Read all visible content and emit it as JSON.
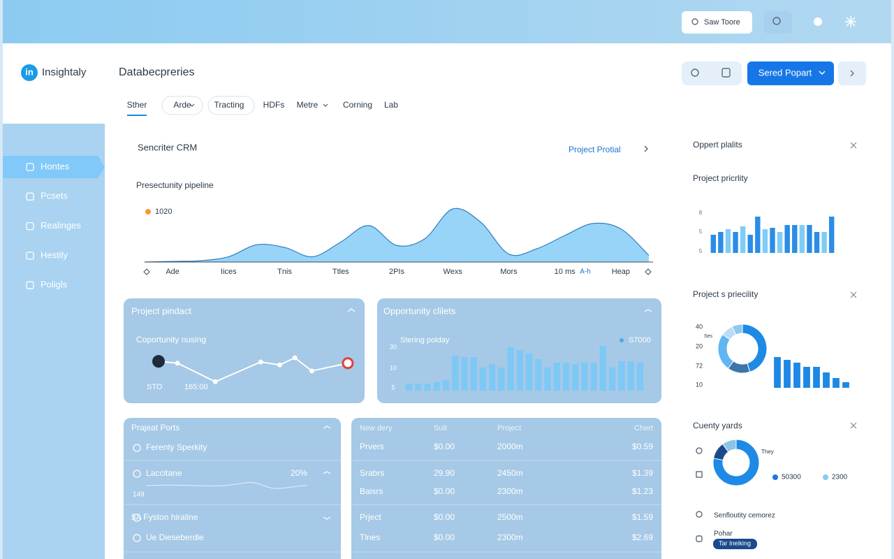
{
  "topbar": {
    "search_placeholder": "Saw Toore"
  },
  "brand": {
    "logo": "in",
    "name": "Insightaly"
  },
  "header": {
    "title": "Databecpreries",
    "button": "Sered Popart"
  },
  "tabs": [
    "Sther",
    "Arde",
    "Tracting",
    "HDFs",
    "Metre",
    "Corning",
    "Lab"
  ],
  "sidebar": [
    "Hontes",
    "Pcsets",
    "Realinges",
    "Hestily",
    "Poligls"
  ],
  "panel": {
    "title": "Sencriter CRM",
    "link": "Project Protial"
  },
  "table_card": {
    "title": "Prajeat Ports",
    "rows": [
      {
        "label": "Ferenty Sperkity"
      },
      {
        "label": "Laccitane",
        "value": "20%",
        "note": "149"
      },
      {
        "label": "5A Fyston hiraline"
      },
      {
        "label": "Ue Dieseberdle"
      }
    ]
  },
  "table": {
    "headers": [
      "New dery",
      "Sult",
      "Project",
      "Chert"
    ],
    "rows": [
      [
        "Prvers",
        "$0.00",
        "2000m",
        "$0.59"
      ],
      [
        "Srabrs",
        "29.90",
        "2450m",
        "$1.39"
      ],
      [
        "Baisrs",
        "$0.00",
        "2300m",
        "$1.23"
      ],
      [
        "Prject",
        "$0.00",
        "2500m",
        "$1.59"
      ],
      [
        "Tlnes",
        "$0.00",
        "2300m",
        "$2.69"
      ]
    ]
  },
  "right": {
    "title": "Oppert plalits",
    "list": [
      {
        "label": "Senfloutity cemorez"
      },
      {
        "label": "Pohar",
        "badge": "Tar Ineiking"
      }
    ]
  },
  "chart_data": [
    {
      "type": "area",
      "title": "Presectunity pipeline",
      "annotation": "1020",
      "annotation_color": "#f39a34",
      "color": "#86cdf6",
      "x": [
        -0.5,
        0,
        0.5,
        1,
        1.5,
        2,
        2.5,
        3,
        3.5,
        4,
        4.5,
        5,
        5.5,
        6,
        6.5,
        7,
        7.5,
        8,
        8.5
      ],
      "values": [
        0,
        1,
        2,
        8,
        26,
        22,
        8,
        30,
        55,
        25,
        35,
        80,
        60,
        12,
        20,
        40,
        58,
        50,
        10
      ],
      "xlim": [
        -0.5,
        8.6
      ],
      "ylim": [
        0,
        100
      ],
      "xticks": [
        {
          "value": 0,
          "label": "Ade"
        },
        {
          "value": 1,
          "label": "Iices"
        },
        {
          "value": 2,
          "label": "Tnis"
        },
        {
          "value": 3,
          "label": "Ttles"
        },
        {
          "value": 4,
          "label": "2PIs"
        },
        {
          "value": 5,
          "label": "Wexs"
        },
        {
          "value": 6,
          "label": "Mors"
        },
        {
          "value": 7,
          "label": "10 ms"
        },
        {
          "value": 8,
          "label": "Heap"
        }
      ],
      "extra_label": "A-h"
    },
    {
      "type": "line",
      "title": "Project pindact",
      "subtitle": "Coportunity nusing",
      "labels": [
        "STO",
        "165:00"
      ],
      "color": "#ffffff",
      "x": [
        0,
        1,
        3,
        5.4,
        6.4,
        7.2,
        8.1,
        10
      ],
      "values": [
        50,
        47,
        16,
        49,
        44,
        56,
        34,
        47
      ],
      "xlim": [
        0,
        10
      ],
      "ylim": [
        0,
        70
      ]
    },
    {
      "type": "bar",
      "title": "Opportunity clilets",
      "subtitle": "Stering polday",
      "legend": "S7000",
      "axis_labels": [
        "30",
        "10",
        "5"
      ],
      "color": "#7ec8f6",
      "values": [
        10,
        10,
        10,
        12,
        15,
        50,
        48,
        48,
        33,
        38,
        33,
        62,
        58,
        53,
        45,
        33,
        40,
        40,
        38,
        40,
        40,
        64,
        33,
        42,
        42,
        40
      ],
      "ylim": [
        0,
        70
      ]
    },
    {
      "type": "bar",
      "title": "Project pricrlity",
      "axis_labels": [
        "8",
        "5",
        "5"
      ],
      "values": [
        26,
        30,
        34,
        30,
        38,
        26,
        52,
        34,
        36,
        30,
        40,
        40,
        40,
        40,
        30,
        30,
        52
      ],
      "colors": [
        "#2a8de8",
        "#2a8de8",
        "#7fccf7",
        "#2a8de8",
        "#7fccf7",
        "#2a8de8",
        "#2a8de8",
        "#7fccf7",
        "#2a8de8",
        "#7fccf7",
        "#2a8de8",
        "#2a8de8",
        "#7fccf7",
        "#2a8de8",
        "#2a8de8",
        "#7fccf7",
        "#2a8de8"
      ],
      "ylim": [
        0,
        60
      ]
    },
    {
      "type": "donut",
      "title": "Project s priecility",
      "label": "Ses",
      "axis_labels": [
        "40",
        "20",
        "72",
        "10"
      ],
      "values": [
        45,
        15,
        25,
        8,
        7
      ],
      "colors": [
        "#1e8ae6",
        "#3d74aa",
        "#5fb6f2",
        "#bcdcf4",
        "#8cc8f0"
      ]
    },
    {
      "type": "bar",
      "values": [
        44,
        40,
        36,
        30,
        30,
        22,
        14,
        8
      ],
      "color": "#1e88e5",
      "ylim": [
        0,
        50
      ]
    },
    {
      "type": "donut",
      "title": "Cuenty yards",
      "label": "They",
      "values": [
        78,
        12,
        10
      ],
      "colors": [
        "#1e8ae6",
        "#1a4a8c",
        "#8cc4e8"
      ],
      "legend": [
        {
          "name": "50300",
          "color": "#1e78d8"
        },
        {
          "name": "2300",
          "color": "#8cc8f0"
        }
      ]
    }
  ]
}
